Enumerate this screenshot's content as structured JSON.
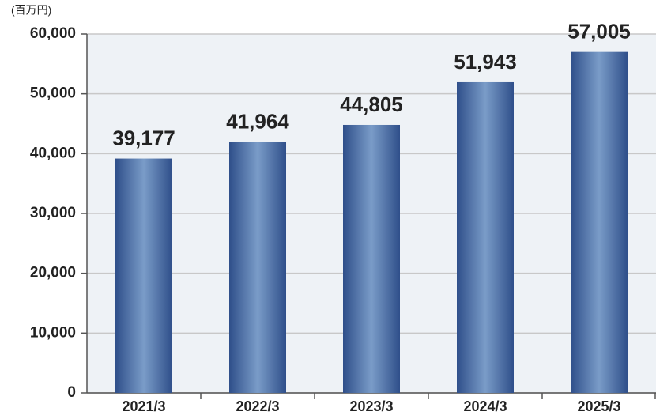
{
  "chart_data": {
    "type": "bar",
    "unit_label": "(百万円)",
    "categories": [
      "2021/3",
      "2022/3",
      "2023/3",
      "2024/3",
      "2025/3"
    ],
    "values": [
      39177,
      41964,
      44805,
      51943,
      57005
    ],
    "value_labels": [
      "39,177",
      "41,964",
      "44,805",
      "51,943",
      "57,005"
    ],
    "color": "#3d5f98",
    "ylim": [
      0,
      60000
    ],
    "yticks": [
      0,
      {
        "value": 10000,
        "label": "10,000"
      },
      {
        "value": 20000,
        "label": "20,000"
      },
      {
        "value": 30000,
        "label": "30,000"
      },
      {
        "value": 40000,
        "label": "40,000"
      },
      {
        "value": 50000,
        "label": "50,000"
      },
      {
        "value": 60000,
        "label": "60,000"
      }
    ],
    "grid": true
  }
}
